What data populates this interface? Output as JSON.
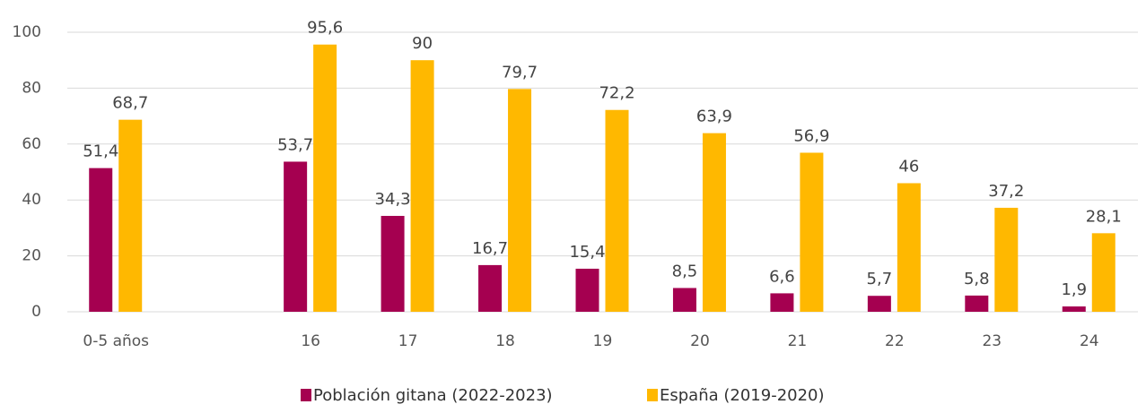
{
  "chart_data": {
    "type": "bar",
    "categories": [
      "0-5 años",
      null,
      "16",
      "17",
      "18",
      "19",
      "20",
      "21",
      "22",
      "23",
      "24"
    ],
    "series": [
      {
        "name": "Población gitana (2022-2023)",
        "color": "#a50050",
        "values": [
          51.4,
          null,
          53.7,
          34.3,
          16.7,
          15.4,
          8.5,
          6.6,
          5.7,
          5.8,
          1.9
        ],
        "value_labels": [
          "51,4",
          null,
          "53,7",
          "34,3",
          "16,7",
          "15,4",
          "8,5",
          "6,6",
          "5,7",
          "5,8",
          "1,9"
        ]
      },
      {
        "name": "España (2019-2020)",
        "color": "#ffb800",
        "values": [
          68.7,
          null,
          95.6,
          90,
          79.7,
          72.2,
          63.9,
          56.9,
          46,
          37.2,
          28.1
        ],
        "value_labels": [
          "68,7",
          null,
          "95,6",
          "90",
          "79,7",
          "72,2",
          "63,9",
          "56,9",
          "46",
          "37,2",
          "28,1"
        ]
      }
    ],
    "ylim": [
      0,
      100
    ],
    "yticks": [
      0,
      20,
      40,
      60,
      80,
      100
    ],
    "grid": true,
    "legend": "bottom"
  }
}
